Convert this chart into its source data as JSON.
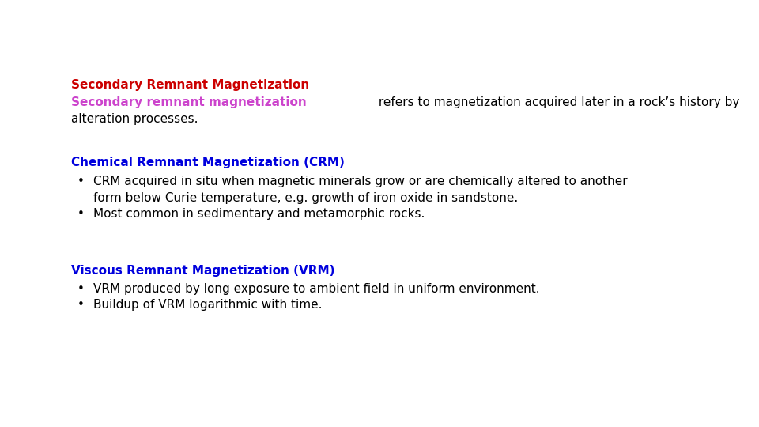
{
  "background_color": "#ffffff",
  "title": "Secondary Remnant Magnetization",
  "title_color": "#cc0000",
  "title_fontsize": 11,
  "subtitle_colored_part": "Secondary remnant magnetization",
  "subtitle_colored_color": "#cc44cc",
  "subtitle_rest_line1": " refers to magnetization acquired later in a rock’s history by",
  "subtitle_rest_line2": "alteration processes.",
  "subtitle_color": "#000000",
  "subtitle_fontsize": 11,
  "section1_title": "Chemical Remnant Magnetization (CRM)",
  "section1_title_color": "#0000dd",
  "section1_title_fontsize": 11,
  "section1_bullet1_line1": "CRM acquired in situ when magnetic minerals grow or are chemically altered to another",
  "section1_bullet1_line2": "form below Curie temperature, e.g. growth of iron oxide in sandstone.",
  "section1_bullet2": "Most common in sedimentary and metamorphic rocks.",
  "section2_title": "Viscous Remnant Magnetization (VRM)",
  "section2_title_color": "#0000dd",
  "section2_title_fontsize": 11,
  "section2_bullet1": "VRM produced by long exposure to ambient field in uniform environment.",
  "section2_bullet2": "Buildup of VRM logarithmic with time.",
  "bullet_color": "#000000",
  "bullet_fontsize": 11,
  "font_family": "DejaVu Sans"
}
